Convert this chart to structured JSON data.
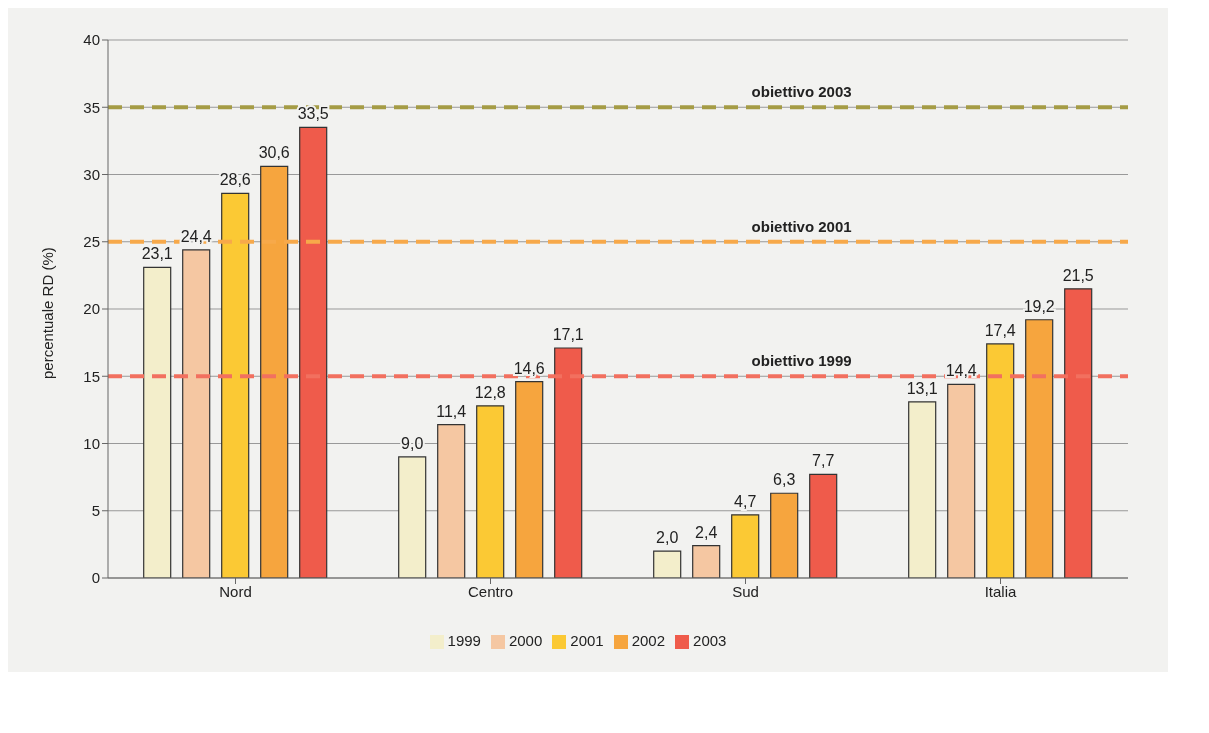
{
  "chart_data": {
    "type": "bar",
    "ylabel": "percentuale RD (%)",
    "categories": [
      "Nord",
      "Centro",
      "Sud",
      "Italia"
    ],
    "series": [
      {
        "name": "1999",
        "color": "#f3eecb",
        "values": [
          23.1,
          9.0,
          2.0,
          13.1
        ],
        "value_labels": [
          "23,1",
          "9,0",
          "2,0",
          "13,1"
        ]
      },
      {
        "name": "2000",
        "color": "#f5c7a2",
        "values": [
          24.4,
          11.4,
          2.4,
          14.4
        ],
        "value_labels": [
          "24,4",
          "11,4",
          "2,4",
          "14,4"
        ]
      },
      {
        "name": "2001",
        "color": "#fbc934",
        "values": [
          28.6,
          12.8,
          4.7,
          17.4
        ],
        "value_labels": [
          "28,6",
          "12,8",
          "4,7",
          "17,4"
        ]
      },
      {
        "name": "2002",
        "color": "#f6a53e",
        "values": [
          30.6,
          14.6,
          6.3,
          19.2
        ],
        "value_labels": [
          "30,6",
          "14,6",
          "6,3",
          "19,2"
        ]
      },
      {
        "name": "2003",
        "color": "#ef5b4b",
        "values": [
          33.5,
          17.1,
          7.7,
          21.5
        ],
        "value_labels": [
          "33,5",
          "17,1",
          "7,7",
          "21,5"
        ]
      }
    ],
    "ylim": [
      0,
      40
    ],
    "yticks": [
      0,
      5,
      10,
      15,
      20,
      25,
      30,
      35,
      40
    ],
    "grid": "y",
    "legend": "bottom",
    "ref_lines": [
      {
        "axis": "y",
        "value": 35,
        "label": "obiettivo 2003",
        "color": "#a59c45",
        "line_style": "dashed"
      },
      {
        "axis": "y",
        "value": 25,
        "label": "obiettivo 2001",
        "color": "#f7a94a",
        "line_style": "dashed"
      },
      {
        "axis": "y",
        "value": 15,
        "label": "obiettivo 1999",
        "color": "#f2705f",
        "line_style": "dashed"
      }
    ]
  }
}
